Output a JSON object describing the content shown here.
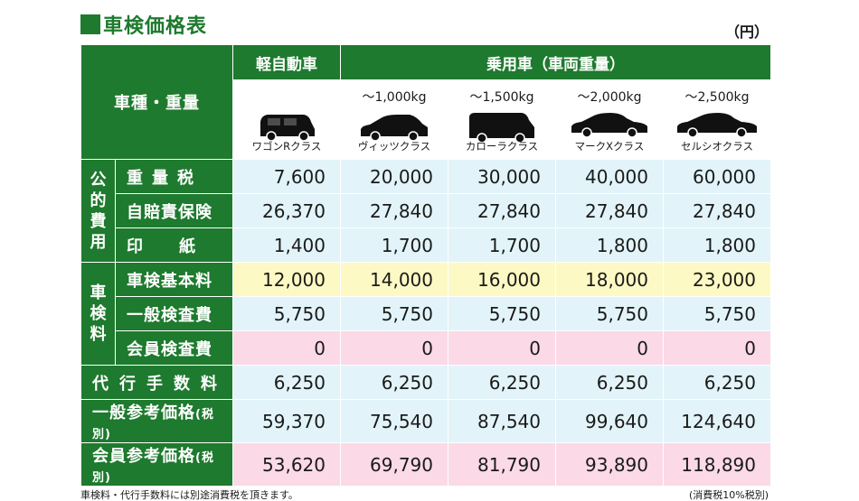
{
  "title": "車検価格表",
  "unit": "（円）",
  "header": {
    "kei": "軽自動車",
    "passenger": "乗用車（車両重量）",
    "corner": "車種・重量"
  },
  "cars": [
    {
      "weight": "",
      "class": "ワゴンRクラス"
    },
    {
      "weight": "～1,000kg",
      "class": "ヴィッツクラス"
    },
    {
      "weight": "～1,500kg",
      "class": "カローラクラス"
    },
    {
      "weight": "～2,000kg",
      "class": "マークXクラス"
    },
    {
      "weight": "～2,500kg",
      "class": "セルシオクラス"
    }
  ],
  "groups": {
    "public": "公的費用",
    "inspection": "車検料"
  },
  "rows": [
    {
      "label": "重量税",
      "values": [
        "7,600",
        "20,000",
        "30,000",
        "40,000",
        "60,000"
      ]
    },
    {
      "label": "自賠責保険",
      "values": [
        "26,370",
        "27,840",
        "27,840",
        "27,840",
        "27,840"
      ]
    },
    {
      "label": "印紙",
      "values": [
        "1,400",
        "1,700",
        "1,700",
        "1,800",
        "1,800"
      ]
    },
    {
      "label": "車検基本料",
      "values": [
        "12,000",
        "14,000",
        "16,000",
        "18,000",
        "23,000"
      ]
    },
    {
      "label": "一般検査費",
      "values": [
        "5,750",
        "5,750",
        "5,750",
        "5,750",
        "5,750"
      ]
    },
    {
      "label": "会員検査費",
      "values": [
        "0",
        "0",
        "0",
        "0",
        "0"
      ]
    },
    {
      "label": "代行手数料",
      "values": [
        "6,250",
        "6,250",
        "6,250",
        "6,250",
        "6,250"
      ]
    },
    {
      "label": "一般参考価格",
      "suffix": "(税別)",
      "values": [
        "59,370",
        "75,540",
        "87,540",
        "99,640",
        "124,640"
      ]
    },
    {
      "label": "会員参考価格",
      "suffix": "(税別)",
      "values": [
        "53,620",
        "69,790",
        "81,790",
        "93,890",
        "118,890"
      ]
    }
  ],
  "notes": {
    "left": "車検料・代行手数料には別途消費税を頂きます。",
    "right": "(消費税10%税別)"
  },
  "colors": {
    "green": "#1e7a2e",
    "blue": "#e2f4f9",
    "yellow": "#fdf9c4",
    "pink": "#fbd9e6"
  },
  "icons": [
    "wagon-car-icon",
    "hatchback-car-icon",
    "van-car-icon",
    "sedan-car-icon",
    "luxury-sedan-car-icon"
  ]
}
